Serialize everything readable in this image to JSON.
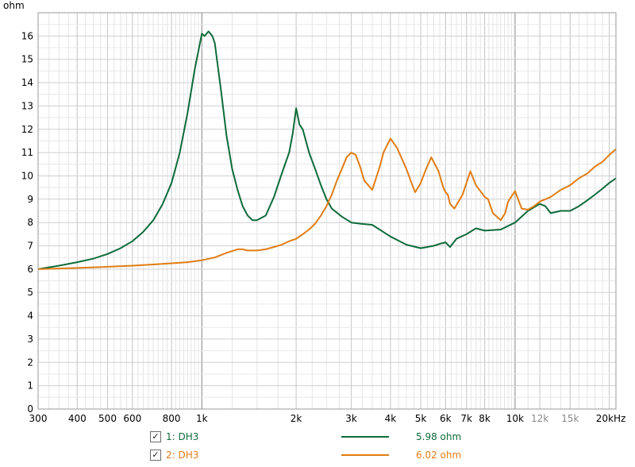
{
  "chart_data": {
    "type": "line",
    "ylabel": "ohm",
    "xunit": "kHz",
    "xscale": "log",
    "xlim": [
      300,
      21000
    ],
    "ylim": [
      0,
      17
    ],
    "yticks": [
      0,
      1,
      2,
      3,
      4,
      5,
      6,
      7,
      8,
      9,
      10,
      11,
      12,
      13,
      14,
      15,
      16
    ],
    "xticks": [
      {
        "v": 300,
        "label": "300"
      },
      {
        "v": 400,
        "label": "400"
      },
      {
        "v": 500,
        "label": "500"
      },
      {
        "v": 600,
        "label": "600"
      },
      {
        "v": 800,
        "label": "800"
      },
      {
        "v": 1000,
        "label": "1k"
      },
      {
        "v": 2000,
        "label": "2k"
      },
      {
        "v": 3000,
        "label": "3k"
      },
      {
        "v": 4000,
        "label": "4k"
      },
      {
        "v": 5000,
        "label": "5k"
      },
      {
        "v": 6000,
        "label": "6k"
      },
      {
        "v": 7000,
        "label": "7k"
      },
      {
        "v": 8000,
        "label": "8k"
      },
      {
        "v": 10000,
        "label": "10k"
      },
      {
        "v": 12000,
        "label": "12k"
      },
      {
        "v": 15000,
        "label": "15k"
      },
      {
        "v": 20000,
        "label": "20k"
      }
    ],
    "grid": true,
    "series": [
      {
        "name": "1: DH3",
        "color": "#0e6b3a",
        "reading": "5.98 ohm",
        "x": [
          300,
          350,
          400,
          450,
          500,
          550,
          600,
          650,
          700,
          750,
          800,
          850,
          900,
          950,
          1000,
          1020,
          1050,
          1080,
          1100,
          1150,
          1200,
          1250,
          1300,
          1350,
          1400,
          1450,
          1500,
          1600,
          1700,
          1800,
          1900,
          1950,
          2000,
          2050,
          2100,
          2200,
          2300,
          2400,
          2500,
          2600,
          2800,
          3000,
          3200,
          3500,
          4000,
          4500,
          5000,
          5500,
          5800,
          6000,
          6200,
          6500,
          7000,
          7500,
          8000,
          9000,
          10000,
          11000,
          12000,
          12500,
          13000,
          14000,
          15000,
          16000,
          17000,
          18000,
          19000,
          20000,
          21000
        ],
        "y": [
          6.0,
          6.15,
          6.3,
          6.45,
          6.65,
          6.9,
          7.2,
          7.6,
          8.1,
          8.8,
          9.7,
          11.0,
          12.7,
          14.6,
          16.1,
          16.0,
          16.2,
          16.0,
          15.7,
          13.7,
          11.7,
          10.3,
          9.4,
          8.7,
          8.3,
          8.1,
          8.1,
          8.3,
          9.1,
          10.1,
          11.0,
          11.8,
          12.9,
          12.2,
          12.0,
          11.0,
          10.3,
          9.6,
          9.0,
          8.6,
          8.25,
          8.0,
          7.95,
          7.9,
          7.4,
          7.05,
          6.9,
          7.0,
          7.1,
          7.15,
          6.95,
          7.3,
          7.5,
          7.75,
          7.65,
          7.7,
          8.0,
          8.5,
          8.8,
          8.7,
          8.4,
          8.5,
          8.5,
          8.7,
          8.95,
          9.2,
          9.45,
          9.7,
          9.9
        ]
      },
      {
        "name": "2: DH3",
        "color": "#e07d14",
        "reading": "6.02 ohm",
        "x": [
          300,
          400,
          500,
          600,
          700,
          800,
          900,
          1000,
          1100,
          1200,
          1300,
          1350,
          1400,
          1500,
          1600,
          1700,
          1800,
          1900,
          2000,
          2100,
          2200,
          2300,
          2400,
          2500,
          2600,
          2700,
          2800,
          2900,
          3000,
          3100,
          3200,
          3300,
          3500,
          3700,
          3800,
          4000,
          4200,
          4500,
          4700,
          4800,
          5000,
          5200,
          5400,
          5700,
          5900,
          6000,
          6100,
          6200,
          6400,
          6600,
          6800,
          7000,
          7200,
          7500,
          8000,
          8200,
          8500,
          9000,
          9300,
          9500,
          10000,
          10500,
          11000,
          11500,
          12000,
          13000,
          14000,
          15000,
          16000,
          17000,
          18000,
          19000,
          20000,
          21000
        ],
        "y": [
          6.0,
          6.05,
          6.1,
          6.15,
          6.2,
          6.25,
          6.3,
          6.38,
          6.5,
          6.7,
          6.85,
          6.85,
          6.8,
          6.8,
          6.85,
          6.95,
          7.05,
          7.2,
          7.3,
          7.5,
          7.7,
          7.95,
          8.3,
          8.7,
          9.2,
          9.8,
          10.3,
          10.8,
          11.0,
          10.9,
          10.4,
          9.8,
          9.4,
          10.4,
          11.0,
          11.6,
          11.2,
          10.3,
          9.6,
          9.3,
          9.7,
          10.3,
          10.8,
          10.2,
          9.5,
          9.3,
          9.2,
          8.8,
          8.6,
          8.9,
          9.2,
          9.7,
          10.2,
          9.6,
          9.1,
          9.0,
          8.4,
          8.1,
          8.4,
          8.9,
          9.35,
          8.6,
          8.55,
          8.7,
          8.9,
          9.1,
          9.4,
          9.6,
          9.9,
          10.1,
          10.4,
          10.6,
          10.9,
          11.15
        ]
      }
    ]
  }
}
